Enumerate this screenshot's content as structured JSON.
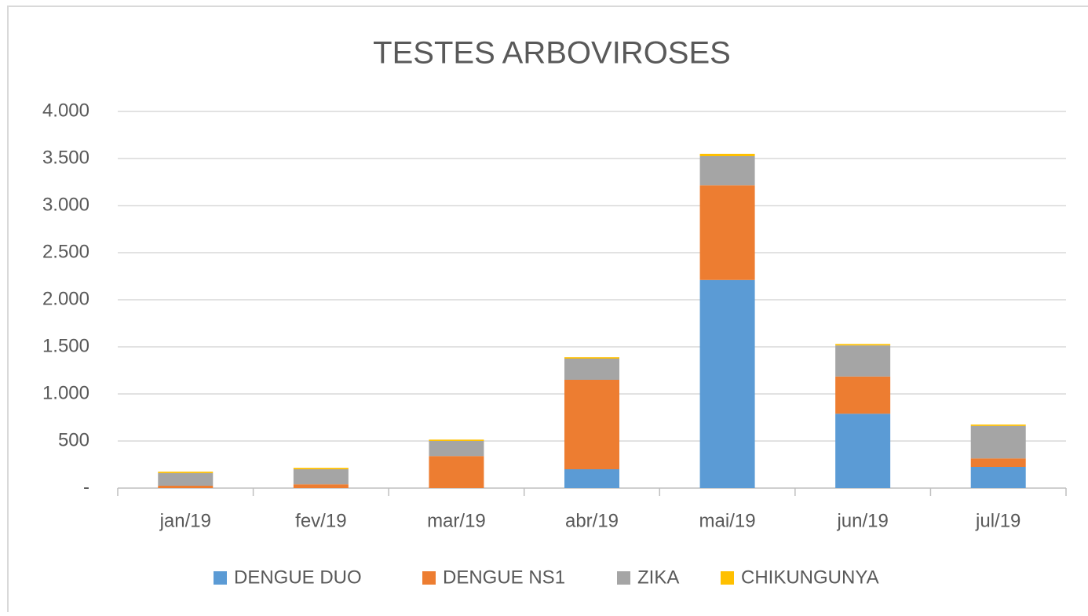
{
  "chart_data": {
    "type": "stacked_bar",
    "title": "TESTES ARBOVIROSES",
    "categories": [
      "jan/19",
      "fev/19",
      "mar/19",
      "abr/19",
      "mai/19",
      "jun/19",
      "jul/19"
    ],
    "series": [
      {
        "name": "DENGUE DUO",
        "color": "#5b9bd5",
        "values": [
          0,
          0,
          0,
          200,
          2210,
          790,
          225
        ]
      },
      {
        "name": "DENGUE NS1",
        "color": "#ed7d31",
        "values": [
          25,
          40,
          340,
          950,
          1005,
          395,
          90
        ]
      },
      {
        "name": "ZIKA",
        "color": "#a5a5a5",
        "values": [
          135,
          160,
          160,
          225,
          310,
          330,
          345
        ]
      },
      {
        "name": "CHIKUNGUNYA",
        "color": "#ffc000",
        "values": [
          15,
          15,
          15,
          15,
          25,
          15,
          15
        ]
      }
    ],
    "ylim": [
      0,
      4000
    ],
    "yticks": [
      {
        "value": 0,
        "label": "-"
      },
      500,
      {
        "value": 1000,
        "label": "1.000"
      },
      {
        "value": 1500,
        "label": "1.500"
      },
      {
        "value": 2000,
        "label": "2.000"
      },
      {
        "value": 2500,
        "label": "2.500"
      },
      {
        "value": 3000,
        "label": "3.000"
      },
      {
        "value": 3500,
        "label": "3.500"
      },
      {
        "value": 4000,
        "label": "4.000"
      }
    ],
    "grid": true,
    "legend": "bottom"
  }
}
